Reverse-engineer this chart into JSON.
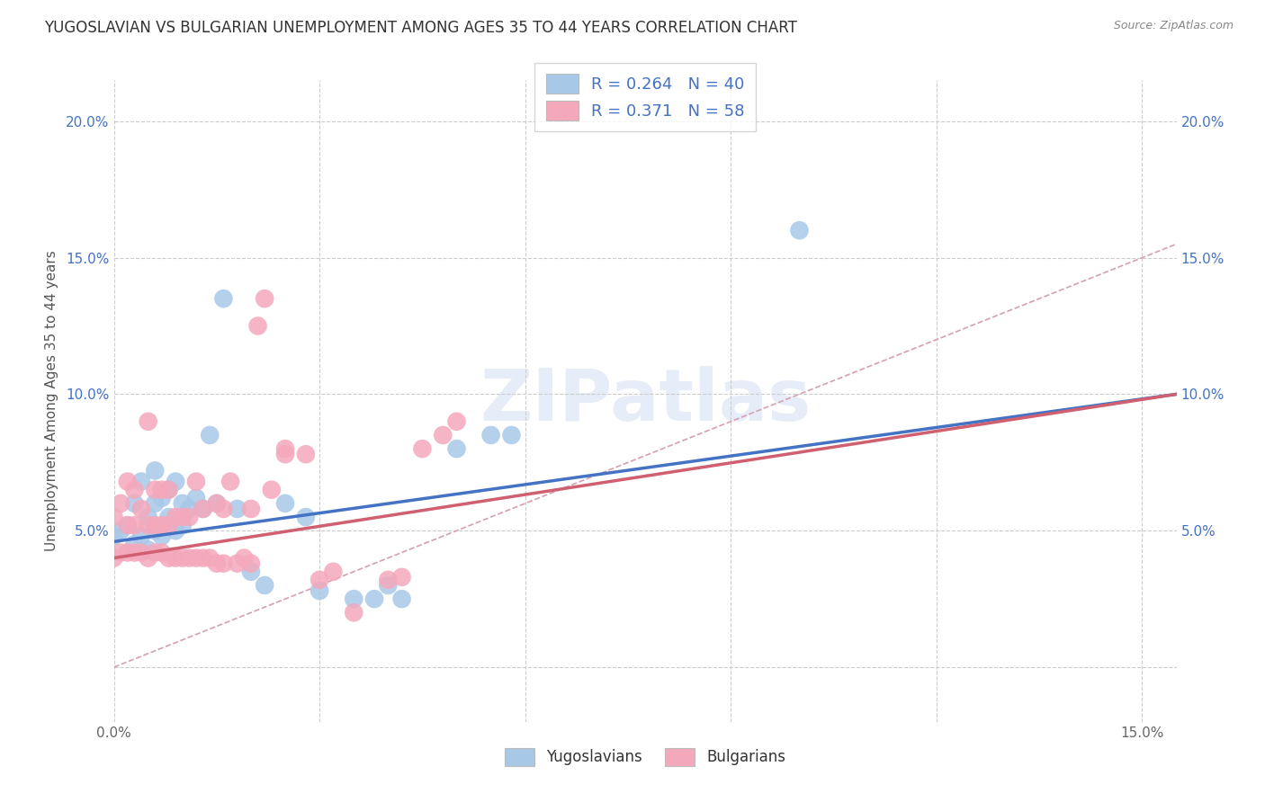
{
  "title": "YUGOSLAVIAN VS BULGARIAN UNEMPLOYMENT AMONG AGES 35 TO 44 YEARS CORRELATION CHART",
  "source": "Source: ZipAtlas.com",
  "ylabel": "Unemployment Among Ages 35 to 44 years",
  "xlim": [
    0.0,
    0.155
  ],
  "ylim": [
    -0.02,
    0.215
  ],
  "background_color": "#ffffff",
  "grid_color": "#cccccc",
  "yugo_color": "#a8c8e8",
  "bulg_color": "#f4a8bc",
  "yugo_line_color": "#4472c4",
  "bulg_line_color": "#d06070",
  "diag_color": "#d4a0b0",
  "tick_color": "#4472c4",
  "xtick_color": "#666666",
  "legend_r1": "0.264",
  "legend_n1": "40",
  "legend_r2": "0.371",
  "legend_n2": "58",
  "title_fontsize": 12,
  "tick_fontsize": 11,
  "legend_fontsize": 13,
  "yugo_x": [
    0.0,
    0.001,
    0.002,
    0.003,
    0.003,
    0.004,
    0.004,
    0.005,
    0.005,
    0.006,
    0.006,
    0.006,
    0.007,
    0.007,
    0.008,
    0.008,
    0.009,
    0.009,
    0.01,
    0.01,
    0.011,
    0.012,
    0.013,
    0.014,
    0.015,
    0.016,
    0.018,
    0.02,
    0.022,
    0.025,
    0.028,
    0.03,
    0.035,
    0.038,
    0.04,
    0.042,
    0.05,
    0.055,
    0.058,
    0.1
  ],
  "yugo_y": [
    0.048,
    0.05,
    0.052,
    0.045,
    0.06,
    0.048,
    0.068,
    0.043,
    0.055,
    0.05,
    0.06,
    0.072,
    0.048,
    0.062,
    0.055,
    0.065,
    0.05,
    0.068,
    0.052,
    0.06,
    0.058,
    0.062,
    0.058,
    0.085,
    0.06,
    0.135,
    0.058,
    0.035,
    0.03,
    0.06,
    0.055,
    0.028,
    0.025,
    0.025,
    0.03,
    0.025,
    0.08,
    0.085,
    0.085,
    0.16
  ],
  "bulg_x": [
    0.0,
    0.0,
    0.001,
    0.001,
    0.002,
    0.002,
    0.002,
    0.003,
    0.003,
    0.003,
    0.004,
    0.004,
    0.005,
    0.005,
    0.005,
    0.006,
    0.006,
    0.006,
    0.007,
    0.007,
    0.007,
    0.008,
    0.008,
    0.008,
    0.009,
    0.009,
    0.01,
    0.01,
    0.011,
    0.011,
    0.012,
    0.012,
    0.013,
    0.013,
    0.014,
    0.015,
    0.015,
    0.016,
    0.016,
    0.017,
    0.018,
    0.019,
    0.02,
    0.02,
    0.021,
    0.022,
    0.023,
    0.025,
    0.025,
    0.028,
    0.03,
    0.032,
    0.035,
    0.04,
    0.042,
    0.045,
    0.048,
    0.05
  ],
  "bulg_y": [
    0.04,
    0.055,
    0.042,
    0.06,
    0.042,
    0.052,
    0.068,
    0.042,
    0.052,
    0.065,
    0.042,
    0.058,
    0.04,
    0.052,
    0.09,
    0.042,
    0.052,
    0.065,
    0.042,
    0.052,
    0.065,
    0.04,
    0.052,
    0.065,
    0.04,
    0.055,
    0.04,
    0.055,
    0.04,
    0.055,
    0.04,
    0.068,
    0.04,
    0.058,
    0.04,
    0.038,
    0.06,
    0.038,
    0.058,
    0.068,
    0.038,
    0.04,
    0.038,
    0.058,
    0.125,
    0.135,
    0.065,
    0.078,
    0.08,
    0.078,
    0.032,
    0.035,
    0.02,
    0.032,
    0.033,
    0.08,
    0.085,
    0.09
  ],
  "yugo_line_x": [
    0.0,
    0.155
  ],
  "yugo_line_y": [
    0.046,
    0.1
  ],
  "bulg_line_x": [
    0.0,
    0.155
  ],
  "bulg_line_y": [
    0.04,
    0.1
  ]
}
